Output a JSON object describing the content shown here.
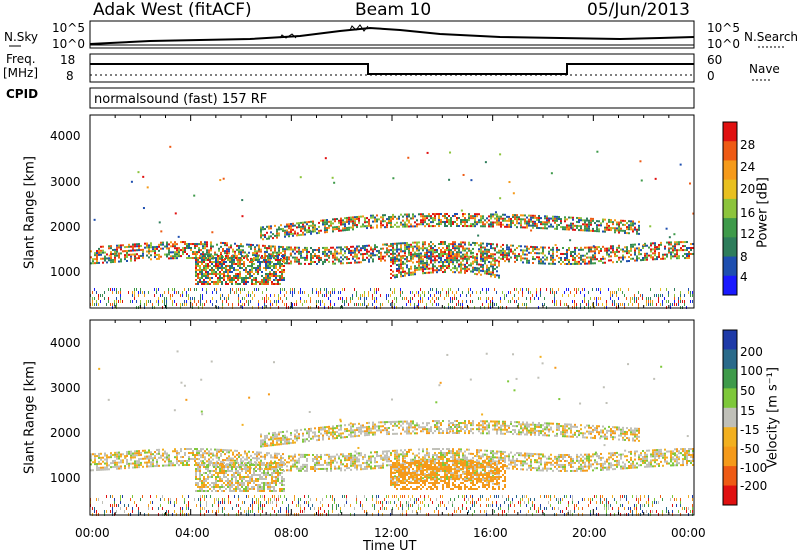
{
  "header": {
    "station": "Adak West (fitACF)",
    "beam": "Beam 10",
    "date": "05/Jun/2013"
  },
  "nsky": {
    "label": "N.Sky",
    "ticks_left": [
      "10^5",
      "10^0"
    ],
    "ticks_right": [
      "10^5",
      "10^0"
    ],
    "right_label": "N.Search"
  },
  "freq": {
    "label_top": "Freq.",
    "label_bottom": "[MHz]",
    "ticks_left": [
      "18",
      "8"
    ],
    "ticks_right": [
      "60",
      "0"
    ],
    "right_label": "Nave"
  },
  "cpid": {
    "label": "CPID",
    "value": "normalsound (fast) 157 RF"
  },
  "panels": {
    "power": {
      "ylabel": "Slant Range [km]",
      "yticks": [
        "4000",
        "3000",
        "2000",
        "1000"
      ],
      "cbar_label": "Power [dB]",
      "cbar_ticks": [
        "28",
        "24",
        "20",
        "16",
        "12",
        "8",
        "4"
      ]
    },
    "velocity": {
      "ylabel": "Slant Range [km]",
      "yticks": [
        "4000",
        "3000",
        "2000",
        "1000"
      ],
      "cbar_label": "Velocity [m s⁻¹]",
      "cbar_ticks": [
        "200",
        "100",
        "50",
        "15",
        "-15",
        "-50",
        "-100",
        "-200"
      ]
    }
  },
  "xaxis": {
    "ticks": [
      "00:00",
      "04:00",
      "08:00",
      "12:00",
      "16:00",
      "20:00",
      "00:00"
    ],
    "label": "Time UT"
  },
  "chart_data": [
    {
      "type": "heatmap",
      "quantity": "Power",
      "unit": "dB",
      "xlim_hours": [
        0,
        24
      ],
      "ylim_km": [
        180,
        4600
      ],
      "colorbar_range": [
        0,
        30
      ],
      "colors": [
        "#1a1aff",
        "#1e4fb0",
        "#2e7d5b",
        "#3e9a4a",
        "#8cc43c",
        "#e8c020",
        "#f59a1a",
        "#ee5a14",
        "#e01010"
      ]
    },
    {
      "type": "heatmap",
      "quantity": "Velocity",
      "unit": "m s⁻¹",
      "xlim_hours": [
        0,
        24
      ],
      "ylim_km": [
        180,
        4600
      ],
      "colorbar_range": [
        -250,
        250
      ],
      "colors": [
        "#e01010",
        "#ee5a14",
        "#f59a1a",
        "#f2b020",
        "#c0c0b8",
        "#7ec83a",
        "#3e9a4a",
        "#2a6a8a",
        "#1e3aa8"
      ]
    }
  ]
}
